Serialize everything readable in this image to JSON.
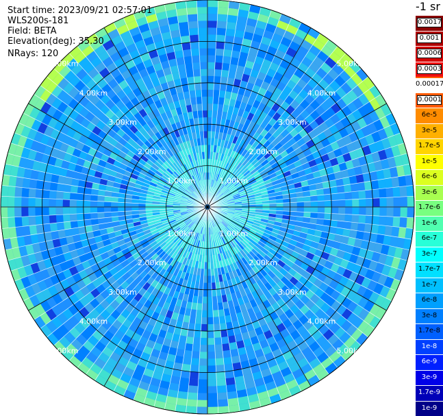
{
  "header": {
    "start_time": "Start time: 2023/09/21 02:57:01",
    "device": "WLS200s-181",
    "field": "Field: BETA",
    "elevation": "Elevation(deg): 35.30",
    "nrays": "NRays: 120"
  },
  "colorbar": {
    "units_label": "-1 sr",
    "levels": [
      {
        "label": "0.0017",
        "color": "#8b0000",
        "text_color": "#000000",
        "boxed": true
      },
      {
        "label": "0.001",
        "color": "#b00000",
        "text_color": "#000000",
        "boxed": true
      },
      {
        "label": "0.0006",
        "color": "#d40000",
        "text_color": "#000000",
        "boxed": true
      },
      {
        "label": "0.0003",
        "color": "#f01010",
        "text_color": "#000000",
        "boxed": true
      },
      {
        "label": "0.00017",
        "color": "#ffffff",
        "text_color": "#000000",
        "boxed": false
      },
      {
        "label": "0.0001",
        "color": "#ff5a00",
        "text_color": "#000000",
        "boxed": true
      },
      {
        "label": "6e-5",
        "color": "#ff8c00",
        "text_color": "#000000",
        "boxed": false
      },
      {
        "label": "3e-5",
        "color": "#ffb000",
        "text_color": "#000000",
        "boxed": false
      },
      {
        "label": "1.7e-5",
        "color": "#ffd400",
        "text_color": "#000000",
        "boxed": false
      },
      {
        "label": "1e-5",
        "color": "#ffff00",
        "text_color": "#000000",
        "boxed": false
      },
      {
        "label": "6e-6",
        "color": "#dcff20",
        "text_color": "#000000",
        "boxed": false
      },
      {
        "label": "3e-6",
        "color": "#a8ff50",
        "text_color": "#000000",
        "boxed": false
      },
      {
        "label": "1.7e-6",
        "color": "#78ff80",
        "text_color": "#000000",
        "boxed": false
      },
      {
        "label": "1e-6",
        "color": "#50ffb0",
        "text_color": "#000000",
        "boxed": false
      },
      {
        "label": "6e-7",
        "color": "#28ffd8",
        "text_color": "#000000",
        "boxed": false
      },
      {
        "label": "3e-7",
        "color": "#00ffff",
        "text_color": "#000000",
        "boxed": false
      },
      {
        "label": "1.7e-7",
        "color": "#00e0ff",
        "text_color": "#000000",
        "boxed": false
      },
      {
        "label": "1e-7",
        "color": "#00c0ff",
        "text_color": "#000000",
        "boxed": false
      },
      {
        "label": "6e-8",
        "color": "#00a0ff",
        "text_color": "#000000",
        "boxed": false
      },
      {
        "label": "3e-8",
        "color": "#0080ff",
        "text_color": "#000000",
        "boxed": false
      },
      {
        "label": "1.7e-8",
        "color": "#0060ff",
        "text_color": "#000000",
        "boxed": false
      },
      {
        "label": "1e-8",
        "color": "#0040ff",
        "text_color": "#ffffff",
        "boxed": false
      },
      {
        "label": "6e-9",
        "color": "#0020ff",
        "text_color": "#ffffff",
        "boxed": false
      },
      {
        "label": "3e-9",
        "color": "#0000e8",
        "text_color": "#ffffff",
        "boxed": false
      },
      {
        "label": "1.7e-9",
        "color": "#0000b8",
        "text_color": "#ffffff",
        "boxed": false
      },
      {
        "label": "1e-9",
        "color": "#000088",
        "text_color": "#ffffff",
        "boxed": false
      }
    ]
  },
  "chart_data": {
    "type": "heatmap",
    "projection": "polar-ppi",
    "rays": 120,
    "max_range_km": 5.0,
    "range_ring_labels_km": [
      "1.00km",
      "2.00km",
      "3.00km",
      "4.00km",
      "5.00km"
    ],
    "range_rings_km": [
      1,
      2,
      3,
      4,
      5
    ],
    "spoke_angles_deg": [
      0,
      30,
      60,
      90,
      120,
      150,
      180,
      210,
      240,
      270,
      300,
      330
    ],
    "label_quadrant_angles_deg": [
      45,
      135,
      225,
      315
    ],
    "background_level_colors": [
      "#1e90ff",
      "#1ea0ff",
      "#10b0ff",
      "#28c0f0",
      "#0080ff",
      "#3aa6f0"
    ],
    "near_field_color": "#40e8e8",
    "far_field_color": "#78f0a8",
    "ring_colors": [
      "#b4ff50",
      "#78f0a8"
    ]
  }
}
